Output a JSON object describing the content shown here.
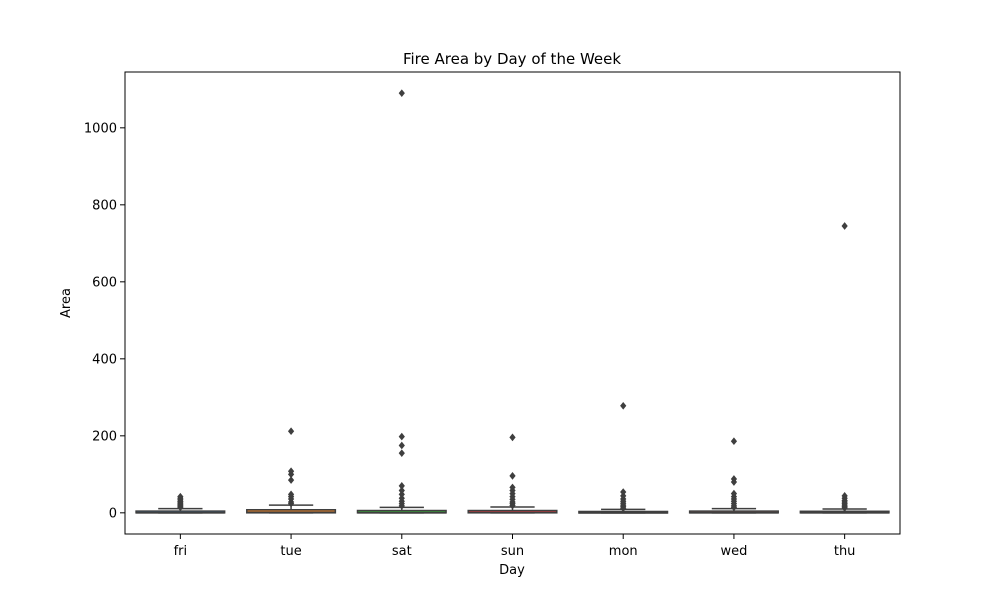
{
  "chart_data": {
    "type": "box",
    "title": "Fire Area by Day of the Week",
    "xlabel": "Day",
    "ylabel": "Area",
    "ylim": [
      -55,
      1145
    ],
    "yticks": [
      "0",
      "200",
      "400",
      "600",
      "800",
      "1000"
    ],
    "grid": false,
    "categories": [
      "fri",
      "tue",
      "sat",
      "sun",
      "mon",
      "wed",
      "thu"
    ],
    "colors": [
      "#3a75af",
      "#e1812c",
      "#3a923a",
      "#c03d3e",
      "#9372b2",
      "#845b53",
      "#d684bd"
    ],
    "boxes": [
      {
        "category": "fri",
        "min": 0,
        "q1": 0,
        "median": 0,
        "q3": 4.5,
        "whisker_high": 11,
        "outliers": [
          14,
          16,
          19,
          22,
          25,
          28,
          30,
          34,
          38,
          42
        ]
      },
      {
        "category": "tue",
        "min": 0,
        "q1": 0,
        "median": 1.5,
        "q3": 8,
        "whisker_high": 20,
        "outliers": [
          24,
          28,
          36,
          42,
          48,
          85,
          100,
          108,
          212
        ]
      },
      {
        "category": "sat",
        "min": 0,
        "q1": 0,
        "median": 0,
        "q3": 6,
        "whisker_high": 14,
        "outliers": [
          18,
          24,
          30,
          38,
          48,
          58,
          70,
          155,
          175,
          198,
          1090
        ]
      },
      {
        "category": "sun",
        "min": 0,
        "q1": 0,
        "median": 0.5,
        "q3": 6,
        "whisker_high": 15,
        "outliers": [
          19,
          24,
          28,
          35,
          42,
          50,
          58,
          66,
          96,
          196
        ]
      },
      {
        "category": "mon",
        "min": 0,
        "q1": 0,
        "median": 0,
        "q3": 3.5,
        "whisker_high": 9,
        "outliers": [
          12,
          16,
          20,
          25,
          30,
          36,
          44,
          54,
          278
        ]
      },
      {
        "category": "wed",
        "min": 0,
        "q1": 0,
        "median": 0,
        "q3": 4.5,
        "whisker_high": 11,
        "outliers": [
          14,
          18,
          24,
          30,
          36,
          42,
          50,
          80,
          88,
          186
        ]
      },
      {
        "category": "thu",
        "min": 0,
        "q1": 0,
        "median": 0,
        "q3": 4,
        "whisker_high": 10,
        "outliers": [
          13,
          16,
          20,
          24,
          28,
          32,
          38,
          44,
          745
        ]
      }
    ]
  }
}
